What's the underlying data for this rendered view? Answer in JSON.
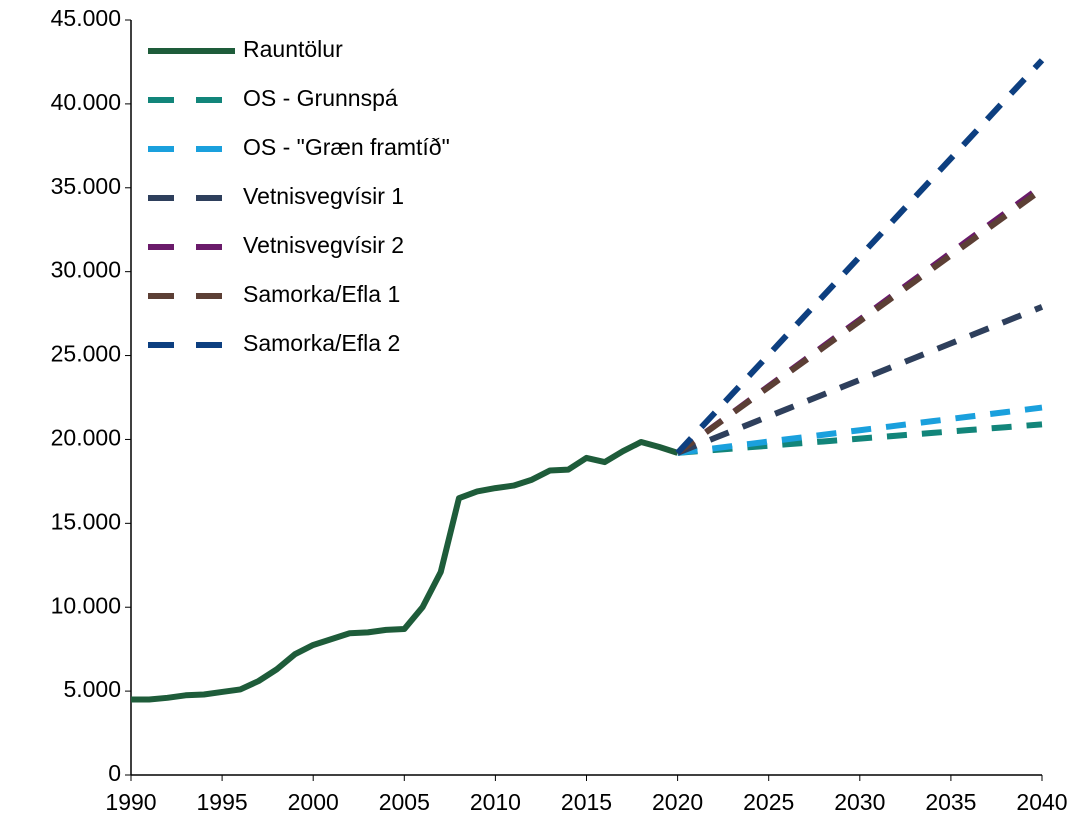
{
  "chart_data": {
    "type": "line",
    "x": [
      1990,
      1991,
      1992,
      1993,
      1994,
      1995,
      1996,
      1997,
      1998,
      1999,
      2000,
      2001,
      2002,
      2003,
      2004,
      2005,
      2006,
      2007,
      2008,
      2009,
      2010,
      2011,
      2012,
      2013,
      2014,
      2015,
      2016,
      2017,
      2018,
      2019,
      2020,
      2021,
      2022,
      2023,
      2024,
      2025,
      2026,
      2027,
      2028,
      2029,
      2030,
      2031,
      2032,
      2033,
      2034,
      2035,
      2036,
      2037,
      2038,
      2039,
      2040
    ],
    "series": [
      {
        "name": "Rauntölur",
        "color": "#1e5c3a",
        "dashed": false,
        "values": [
          4500,
          4500,
          4600,
          4750,
          4800,
          4950,
          5100,
          5600,
          6300,
          7200,
          7750,
          8100,
          8450,
          8500,
          8650,
          8700,
          10000,
          12100,
          16500,
          16900,
          17100,
          17250,
          17600,
          18150,
          18200,
          18900,
          18650,
          19300,
          19850,
          19550,
          19200,
          null,
          null,
          null,
          null,
          null,
          null,
          null,
          null,
          null,
          null,
          null,
          null,
          null,
          null,
          null,
          null,
          null,
          null,
          null,
          null
        ]
      },
      {
        "name": "OS - Grunnspá",
        "color": "#12857a",
        "dashed": true,
        "values": [
          null,
          null,
          null,
          null,
          null,
          null,
          null,
          null,
          null,
          null,
          null,
          null,
          null,
          null,
          null,
          null,
          null,
          null,
          null,
          null,
          null,
          null,
          null,
          null,
          null,
          null,
          null,
          null,
          null,
          null,
          19200,
          19285,
          19370,
          19455,
          19540,
          19625,
          19710,
          19795,
          19880,
          19965,
          20050,
          20135,
          20220,
          20305,
          20390,
          20475,
          20560,
          20645,
          20730,
          20815,
          20900
        ]
      },
      {
        "name": "OS - \"Græn framtíð\"",
        "color": "#1aa0dd",
        "dashed": true,
        "values": [
          null,
          null,
          null,
          null,
          null,
          null,
          null,
          null,
          null,
          null,
          null,
          null,
          null,
          null,
          null,
          null,
          null,
          null,
          null,
          null,
          null,
          null,
          null,
          null,
          null,
          null,
          null,
          null,
          null,
          null,
          19200,
          19335,
          19470,
          19605,
          19740,
          19875,
          20010,
          20145,
          20280,
          20415,
          20550,
          20685,
          20820,
          20955,
          21090,
          21225,
          21360,
          21495,
          21630,
          21765,
          21900
        ]
      },
      {
        "name": "Vetnisvegvísir 1",
        "color": "#2e3f5c",
        "dashed": true,
        "values": [
          null,
          null,
          null,
          null,
          null,
          null,
          null,
          null,
          null,
          null,
          null,
          null,
          null,
          null,
          null,
          null,
          null,
          null,
          null,
          null,
          null,
          null,
          null,
          null,
          null,
          null,
          null,
          null,
          null,
          null,
          19200,
          19635,
          20070,
          20505,
          20940,
          21375,
          21810,
          22245,
          22680,
          23115,
          23550,
          23985,
          24420,
          24855,
          25290,
          25725,
          26160,
          26595,
          27030,
          27465,
          27900
        ]
      },
      {
        "name": "Vetnisvegvísir 2",
        "color": "#6a1b6a",
        "dashed": true,
        "values": [
          null,
          null,
          null,
          null,
          null,
          null,
          null,
          null,
          null,
          null,
          null,
          null,
          null,
          null,
          null,
          null,
          null,
          null,
          null,
          null,
          null,
          null,
          null,
          null,
          null,
          null,
          null,
          null,
          null,
          null,
          19200,
          19995,
          20790,
          21585,
          22380,
          23175,
          23970,
          24765,
          25560,
          26355,
          27150,
          27945,
          28740,
          29535,
          30330,
          31125,
          31920,
          32715,
          33510,
          34305,
          35100
        ]
      },
      {
        "name": "Samorka/Efla 1",
        "color": "#5c3f35",
        "dashed": true,
        "values": [
          null,
          null,
          null,
          null,
          null,
          null,
          null,
          null,
          null,
          null,
          null,
          null,
          null,
          null,
          null,
          null,
          null,
          null,
          null,
          null,
          null,
          null,
          null,
          null,
          null,
          null,
          null,
          null,
          null,
          null,
          19200,
          19985,
          20770,
          21555,
          22340,
          23125,
          23910,
          24695,
          25480,
          26265,
          27050,
          27835,
          28620,
          29405,
          30190,
          30975,
          31760,
          32545,
          33330,
          34115,
          34900
        ]
      },
      {
        "name": "Samorka/Efla 2",
        "color": "#0d3f80",
        "dashed": true,
        "values": [
          null,
          null,
          null,
          null,
          null,
          null,
          null,
          null,
          null,
          null,
          null,
          null,
          null,
          null,
          null,
          null,
          null,
          null,
          null,
          null,
          null,
          null,
          null,
          null,
          null,
          null,
          null,
          null,
          null,
          null,
          19200,
          20370,
          21540,
          22710,
          23880,
          25050,
          26220,
          27390,
          28560,
          29730,
          30900,
          32070,
          33240,
          34410,
          35580,
          36750,
          37920,
          39090,
          40260,
          41430,
          42600
        ]
      }
    ],
    "xlim": [
      1990,
      2040
    ],
    "xticks": [
      1990,
      1995,
      2000,
      2005,
      2010,
      2015,
      2020,
      2025,
      2030,
      2035,
      2040
    ],
    "ylim": [
      0,
      45000
    ],
    "yticks": [
      0,
      {
        "value": 5000,
        "label": "5.000"
      },
      {
        "value": 10000,
        "label": "10.000"
      },
      {
        "value": 15000,
        "label": "15.000"
      },
      {
        "value": 20000,
        "label": "20.000"
      },
      {
        "value": 25000,
        "label": "25.000"
      },
      {
        "value": 30000,
        "label": "30.000"
      },
      {
        "value": 35000,
        "label": "35.000"
      },
      {
        "value": 40000,
        "label": "40.000"
      },
      {
        "value": 45000,
        "label": "45.000"
      }
    ],
    "grid": false,
    "legend": "upper left"
  }
}
